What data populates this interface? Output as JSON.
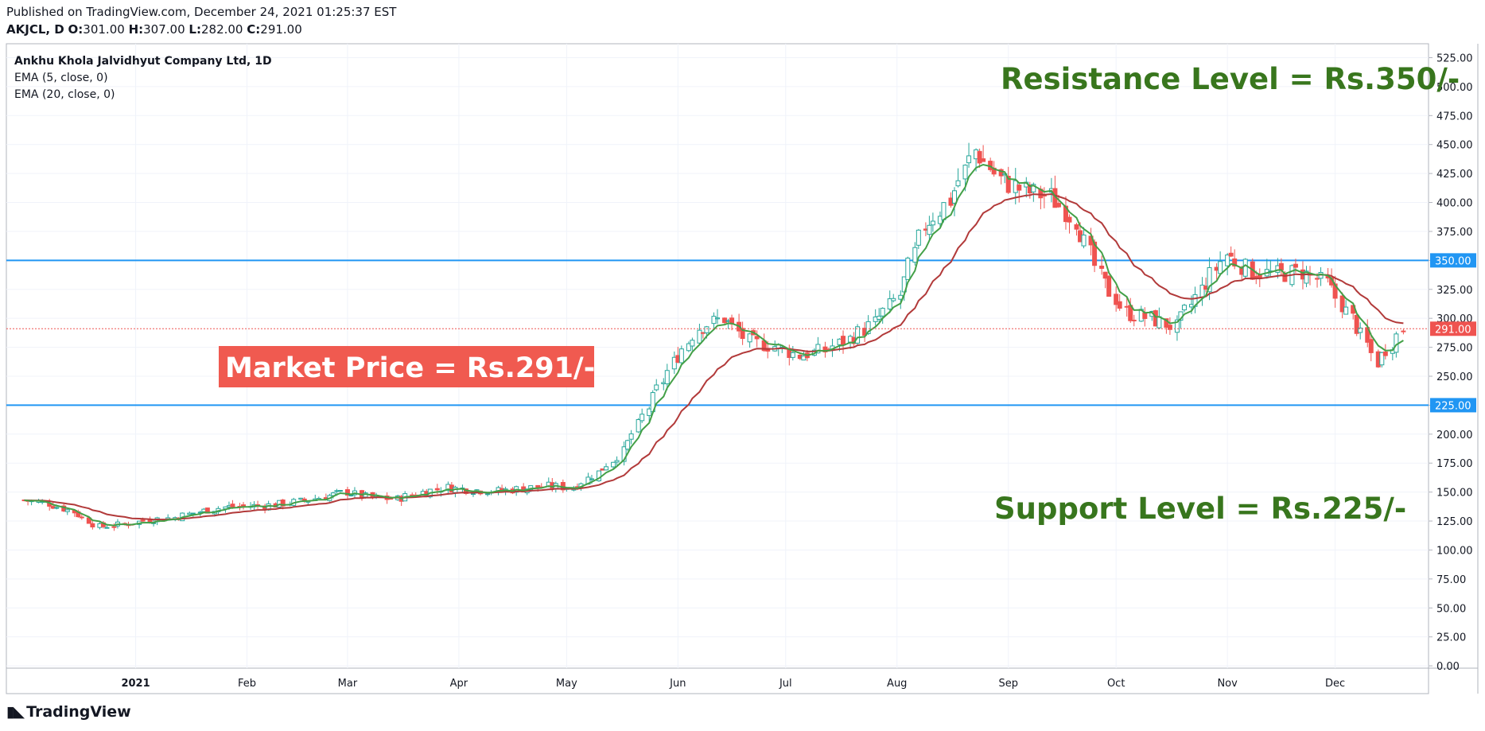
{
  "header": {
    "published": "Published on TradingView.com, December 24, 2021 01:25:37 EST",
    "symbol": "AKJCL, D",
    "o_label": "O:",
    "o_value": "301.00",
    "h_label": "H:",
    "h_value": "307.00",
    "l_label": "L:",
    "l_value": "282.00",
    "c_label": "C:",
    "c_value": "291.00"
  },
  "legend": {
    "title": "Ankhu Khola Jalvidhyut Company Ltd, 1D",
    "ema_fast": "EMA (5, close, 0)",
    "ema_slow": "EMA (20, close, 0)"
  },
  "annotations": {
    "resistance": "Resistance Level = Rs.350/-",
    "support": "Support Level = Rs.225/-",
    "market": "Market Price = Rs.291/-"
  },
  "brand": {
    "name": "TradingView"
  },
  "colors": {
    "up": "#26a69a",
    "down": "#ef5350",
    "ema_fast": "#43a047",
    "ema_slow": "#b23a3a",
    "level_line": "#2196f3",
    "annotation_text": "#38761d",
    "market_box": "#f05a50"
  },
  "chart_data": {
    "type": "candlestick",
    "title": "Ankhu Khola Jalvidhyut Company Ltd, 1D",
    "x_ticks": [
      "2021",
      "Feb",
      "Mar",
      "Apr",
      "May",
      "Jun",
      "Jul",
      "Aug",
      "Sep",
      "Oct",
      "Nov",
      "Dec"
    ],
    "y_ticks": [
      "0.00",
      "25.00",
      "50.00",
      "75.00",
      "100.00",
      "125.00",
      "150.00",
      "175.00",
      "200.00",
      "225.00",
      "250.00",
      "275.00",
      "300.00",
      "325.00",
      "350.00",
      "375.00",
      "400.00",
      "425.00",
      "450.00",
      "475.00",
      "500.00",
      "525.00"
    ],
    "ylim": [
      -2,
      537
    ],
    "levels": [
      {
        "name": "Resistance",
        "value": 350,
        "label": "350.00"
      },
      {
        "name": "Support",
        "value": 225,
        "label": "225.00"
      }
    ],
    "last_price": {
      "value": 291,
      "label": "291.00"
    },
    "close_series": [
      [
        "2020-12-01",
        143
      ],
      [
        "2020-12-08",
        140
      ],
      [
        "2020-12-15",
        133
      ],
      [
        "2020-12-22",
        120
      ],
      [
        "2020-12-29",
        122
      ],
      [
        "2021-01-05",
        126
      ],
      [
        "2021-01-12",
        128
      ],
      [
        "2021-01-19",
        133
      ],
      [
        "2021-01-26",
        137
      ],
      [
        "2021-02-02",
        138
      ],
      [
        "2021-02-09",
        139
      ],
      [
        "2021-02-16",
        142
      ],
      [
        "2021-02-23",
        146
      ],
      [
        "2021-03-01",
        150
      ],
      [
        "2021-03-08",
        145
      ],
      [
        "2021-03-15",
        144
      ],
      [
        "2021-03-22",
        150
      ],
      [
        "2021-03-29",
        154
      ],
      [
        "2021-04-05",
        152
      ],
      [
        "2021-04-12",
        151
      ],
      [
        "2021-04-19",
        153
      ],
      [
        "2021-04-26",
        155
      ],
      [
        "2021-05-03",
        154
      ],
      [
        "2021-05-10",
        167
      ],
      [
        "2021-05-17",
        185
      ],
      [
        "2021-05-24",
        223
      ],
      [
        "2021-05-31",
        262
      ],
      [
        "2021-06-07",
        292
      ],
      [
        "2021-06-14",
        300
      ],
      [
        "2021-06-21",
        280
      ],
      [
        "2021-06-28",
        276
      ],
      [
        "2021-07-05",
        268
      ],
      [
        "2021-07-12",
        272
      ],
      [
        "2021-07-19",
        282
      ],
      [
        "2021-07-26",
        296
      ],
      [
        "2021-08-02",
        320
      ],
      [
        "2021-08-09",
        380
      ],
      [
        "2021-08-16",
        402
      ],
      [
        "2021-08-23",
        445
      ],
      [
        "2021-08-30",
        420
      ],
      [
        "2021-09-06",
        410
      ],
      [
        "2021-09-13",
        405
      ],
      [
        "2021-09-20",
        385
      ],
      [
        "2021-09-27",
        335
      ],
      [
        "2021-10-04",
        305
      ],
      [
        "2021-10-11",
        300
      ],
      [
        "2021-10-18",
        292
      ],
      [
        "2021-10-25",
        325
      ],
      [
        "2021-11-01",
        355
      ],
      [
        "2021-11-08",
        340
      ],
      [
        "2021-11-15",
        338
      ],
      [
        "2021-11-22",
        340
      ],
      [
        "2021-11-29",
        330
      ],
      [
        "2021-12-06",
        300
      ],
      [
        "2021-12-13",
        262
      ],
      [
        "2021-12-20",
        291
      ]
    ]
  }
}
